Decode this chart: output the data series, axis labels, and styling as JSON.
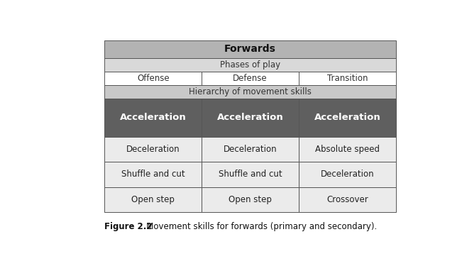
{
  "title": "Forwards",
  "subtitle": "Phases of play",
  "phases": [
    "Offense",
    "Defense",
    "Transition"
  ],
  "hierarchy_label": "Hierarchy of movement skills",
  "primary_skill": "Acceleration",
  "secondary_skills": [
    [
      "Deceleration",
      "Deceleration",
      "Absolute speed"
    ],
    [
      "Shuffle and cut",
      "Shuffle and cut",
      "Deceleration"
    ],
    [
      "Open step",
      "Open step",
      "Crossover"
    ]
  ],
  "caption_bold": "Figure 2.2",
  "caption_normal": "   Movement skills for forwards (primary and secondary).",
  "color_header1": "#b3b3b3",
  "color_header2": "#d9d9d9",
  "color_phases_bg": "#ffffff",
  "color_hierarchy_bg": "#c8c8c8",
  "color_primary_bg": "#5f5f5f",
  "color_primary_text": "#ffffff",
  "color_secondary_bg": "#ebebeb",
  "color_secondary_text": "#222222",
  "color_border": "#555555",
  "fig_width": 6.51,
  "fig_height": 3.75
}
